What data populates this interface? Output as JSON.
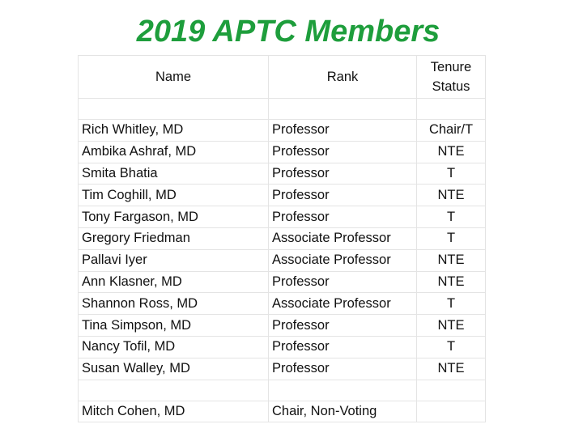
{
  "header": {
    "title": "2019 APTC Members"
  },
  "table": {
    "columns": [
      "Name",
      "Rank",
      "Tenure Status"
    ],
    "rows": [
      [
        "Rich Whitley, MD",
        "Professor",
        "Chair/T"
      ],
      [
        "Ambika Ashraf, MD",
        "Professor",
        "NTE"
      ],
      [
        "Smita Bhatia",
        "Professor",
        "T"
      ],
      [
        "Tim Coghill, MD",
        "Professor",
        "NTE"
      ],
      [
        "Tony Fargason, MD",
        "Professor",
        "T"
      ],
      [
        "Gregory Friedman",
        "Associate Professor",
        "T"
      ],
      [
        "Pallavi Iyer",
        "Associate Professor",
        "NTE"
      ],
      [
        "Ann Klasner, MD",
        "Professor",
        "NTE"
      ],
      [
        "Shannon Ross, MD",
        "Associate Professor",
        "T"
      ],
      [
        "Tina Simpson, MD",
        "Professor",
        "NTE"
      ],
      [
        "Nancy Tofil, MD",
        "Professor",
        "T"
      ],
      [
        "Susan Walley, MD",
        "Professor",
        "NTE"
      ]
    ],
    "footer_row": [
      "Mitch Cohen, MD",
      "Chair, Non-Voting"
    ]
  }
}
